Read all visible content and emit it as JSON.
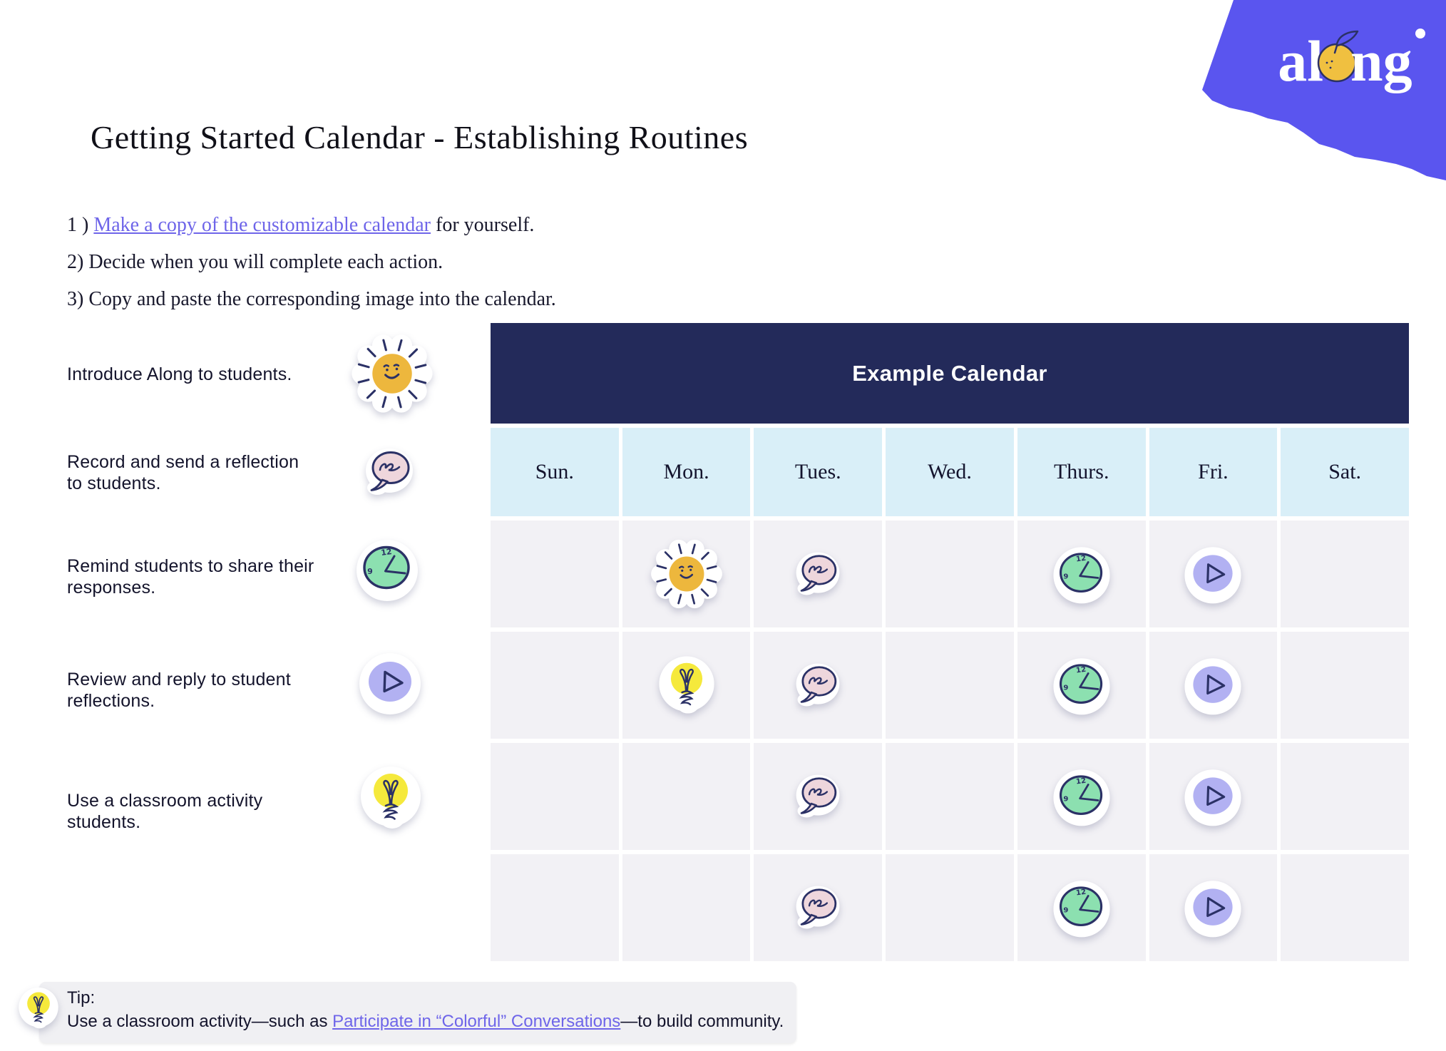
{
  "logo": {
    "part1": "al",
    "part2": "ng"
  },
  "title": "Getting Started Calendar - Establishing Routines",
  "steps": [
    {
      "prefix": "1 ) ",
      "link": "Make a copy of the customizable calendar",
      "suffix": " for yourself."
    },
    {
      "text": "2) Decide when you will complete each action."
    },
    {
      "text": "3) Copy and paste the corresponding image into the calendar."
    }
  ],
  "actions": [
    {
      "label": "Introduce Along to students.",
      "icon": "sun"
    },
    {
      "label": "Record and send a reflection to students.",
      "icon": "speech-bubble"
    },
    {
      "label": "Remind students to share their responses.",
      "icon": "clock"
    },
    {
      "label": "Review  and reply to student reflections.",
      "icon": "play"
    },
    {
      "label": "Use a classroom activity students.",
      "icon": "lightbulb"
    }
  ],
  "calendar": {
    "title": "Example Calendar",
    "days": [
      "Sun.",
      "Mon.",
      "Tues.",
      "Wed.",
      "Thurs.",
      "Fri.",
      "Sat."
    ],
    "grid": [
      [
        "",
        "sun",
        "speech-bubble",
        "",
        "clock",
        "play",
        ""
      ],
      [
        "",
        "lightbulb",
        "speech-bubble",
        "",
        "clock",
        "play",
        ""
      ],
      [
        "",
        "",
        "speech-bubble",
        "",
        "clock",
        "play",
        ""
      ],
      [
        "",
        "",
        "speech-bubble",
        "",
        "clock",
        "play",
        ""
      ]
    ]
  },
  "tip": {
    "heading": "Tip:",
    "text_before": "Use a classroom activity—such as ",
    "link": "Participate in “Colorful” Conversations",
    "text_after": "—to build community."
  },
  "colors": {
    "brand_purple": "#5a55ef",
    "header_navy": "#232a5a",
    "day_blue": "#d9eff8",
    "cell_gray": "#f2f1f5",
    "link_purple": "#6e65e9",
    "outline_navy": "#2b3166",
    "sun_yellow": "#edb73d",
    "bubble_pink": "#eed6dc",
    "clock_green": "#8ce0b0",
    "play_periwinkle": "#b2b1f2",
    "bulb_yellow": "#f5e93c",
    "logo_orange": "#f0c040"
  }
}
